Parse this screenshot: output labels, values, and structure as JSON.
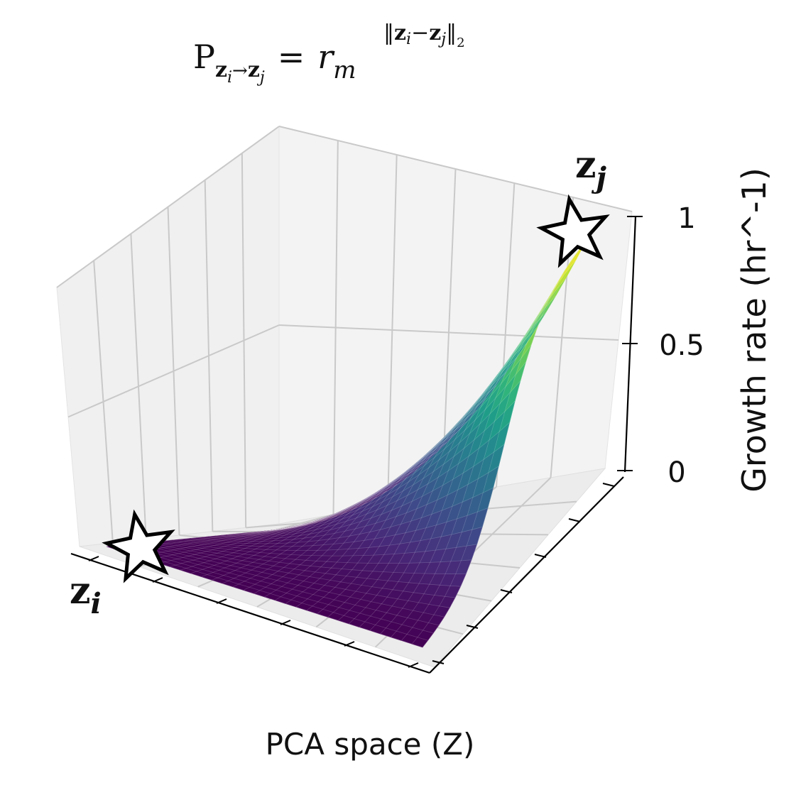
{
  "chart_data": {
    "type": "surface",
    "title": {
      "base": "P",
      "sub": "z",
      "sub_i": "i",
      "arrow": "→",
      "sub2": "z",
      "sub_j": "j",
      "equals": "=",
      "r": "r",
      "r_sub": "m",
      "exp_open": "‖",
      "exp_zi": "z",
      "exp_i": "i",
      "exp_minus": "−",
      "exp_zj": "z",
      "exp_j": "j",
      "exp_close": "‖",
      "exp_norm": "2"
    },
    "xlabel": "PCA space (Z)",
    "zlabel": "Growth rate (hr^-1)",
    "z_ticks": [
      "0",
      "0.5",
      "1"
    ],
    "zlim": [
      0,
      1
    ],
    "grid": true,
    "colormap": "viridis",
    "markers": [
      {
        "label": "z",
        "sub": "i",
        "value": 0.0
      },
      {
        "label": "z",
        "sub": "j",
        "value": 1.0
      }
    ],
    "colors": {
      "viridis_low": "#440154",
      "viridis_mid": "#21918c",
      "viridis_high": "#fde725",
      "pane": "#f2f2f2",
      "grid": "#c8c8c8"
    }
  }
}
